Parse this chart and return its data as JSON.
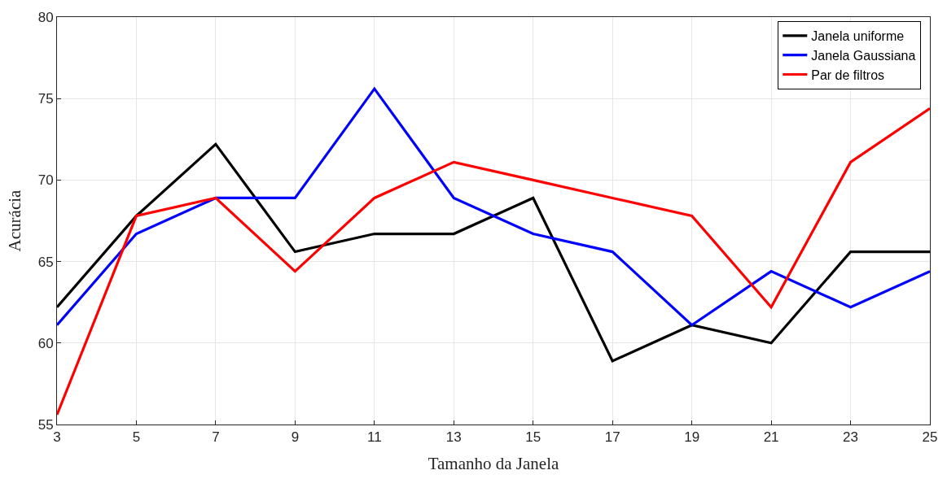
{
  "chart_data": {
    "type": "line",
    "xlabel": "Tamanho da Janela",
    "ylabel": "Acurácia",
    "x": [
      3,
      5,
      7,
      9,
      11,
      13,
      15,
      17,
      19,
      21,
      23,
      25
    ],
    "series": [
      {
        "name": "Janela uniforme",
        "color": "#000000",
        "values": [
          62.2,
          67.8,
          72.2,
          65.6,
          66.7,
          66.7,
          68.9,
          58.9,
          61.1,
          60.0,
          65.6,
          65.6
        ]
      },
      {
        "name": "Janela Gaussiana",
        "color": "#0000ff",
        "values": [
          61.1,
          66.7,
          68.9,
          68.9,
          75.6,
          68.9,
          66.7,
          65.6,
          61.1,
          64.4,
          62.2,
          64.4
        ]
      },
      {
        "name": "Par de filtros",
        "color": "#ff0000",
        "values": [
          55.6,
          67.8,
          68.9,
          64.4,
          68.9,
          71.1,
          70.0,
          68.9,
          67.8,
          62.2,
          71.1,
          74.4
        ]
      }
    ],
    "xlim": [
      3,
      25
    ],
    "xticks": [
      3,
      5,
      7,
      9,
      11,
      13,
      15,
      17,
      19,
      21,
      23,
      25
    ],
    "ylim": [
      55,
      80
    ],
    "yticks": [
      55,
      60,
      65,
      70,
      75,
      80
    ],
    "grid": true,
    "legend": "top right",
    "marker": "none",
    "line_style": "solid"
  }
}
